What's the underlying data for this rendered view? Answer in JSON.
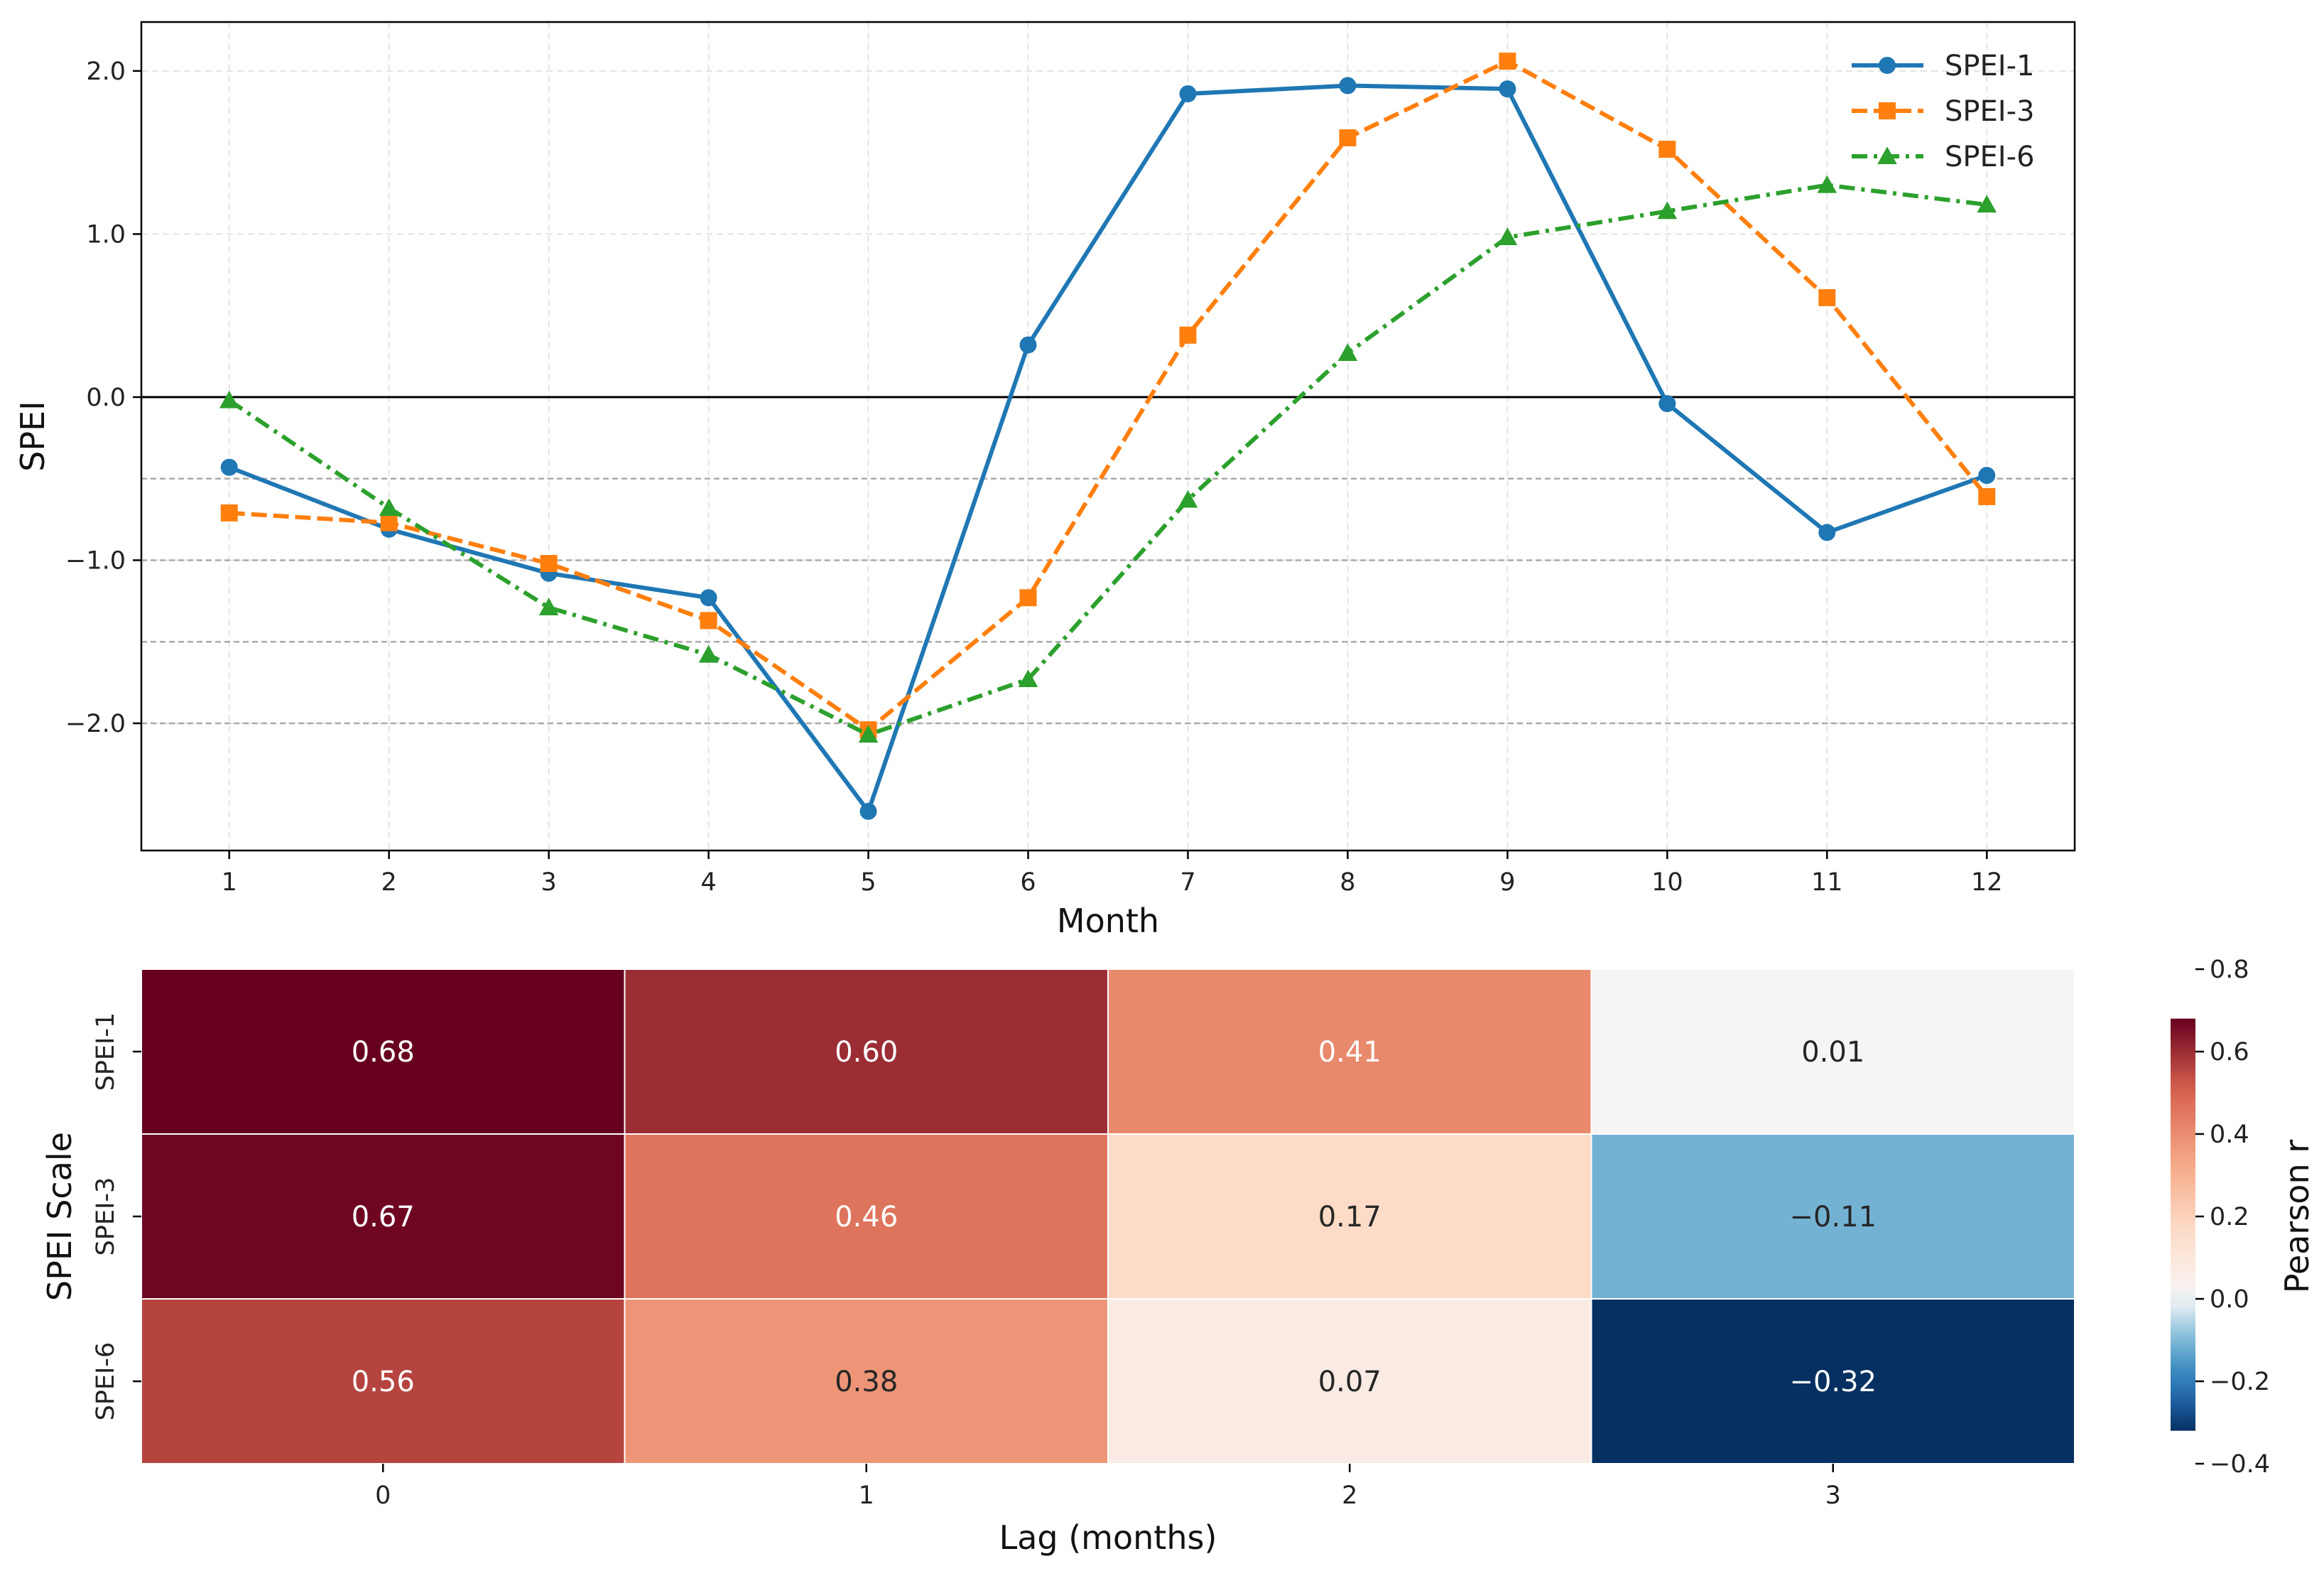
{
  "chart_data": [
    {
      "type": "line",
      "xlabel": "Month",
      "ylabel": "SPEI",
      "x": [
        1,
        2,
        3,
        4,
        5,
        6,
        7,
        8,
        9,
        10,
        11,
        12
      ],
      "xlim": [
        0.45,
        12.55
      ],
      "ylim": [
        -2.78,
        2.3
      ],
      "yticks": [
        2.0,
        1.0,
        0.0,
        -1.0,
        -2.0
      ],
      "ytick_labels": [
        "2.0",
        "1.0",
        "0.0",
        "−1.0",
        "−2.0"
      ],
      "reference_lines": [
        -0.5,
        -1.0,
        -1.5,
        -2.0
      ],
      "zero_line": 0.0,
      "grid": true,
      "legend_position": "top-right",
      "series": [
        {
          "name": "SPEI-1",
          "color": "#1f77b4",
          "marker": "circle",
          "linestyle": "solid",
          "values": [
            -0.43,
            -0.81,
            -1.08,
            -1.23,
            -2.54,
            0.32,
            1.86,
            1.91,
            1.89,
            -0.04,
            -0.83,
            -0.48
          ]
        },
        {
          "name": "SPEI-3",
          "color": "#ff7f0e",
          "marker": "square",
          "linestyle": "dashed",
          "values": [
            -0.71,
            -0.77,
            -1.02,
            -1.37,
            -2.04,
            -1.23,
            0.38,
            1.59,
            2.06,
            1.52,
            0.61,
            -0.61
          ]
        },
        {
          "name": "SPEI-6",
          "color": "#2ca02c",
          "marker": "triangle",
          "linestyle": "dashdot",
          "values": [
            -0.02,
            -0.68,
            -1.29,
            -1.58,
            -2.07,
            -1.73,
            -0.63,
            0.27,
            0.98,
            1.14,
            1.3,
            1.18
          ]
        }
      ]
    },
    {
      "type": "heatmap",
      "xlabel": "Lag (months)",
      "ylabel": "SPEI Scale",
      "x_labels": [
        "0",
        "1",
        "2",
        "3"
      ],
      "y_labels": [
        "SPEI-1",
        "SPEI-3",
        "SPEI-6"
      ],
      "values": [
        [
          0.68,
          0.6,
          0.41,
          0.01
        ],
        [
          0.67,
          0.46,
          0.17,
          -0.11
        ],
        [
          0.56,
          0.38,
          0.07,
          -0.32
        ]
      ],
      "value_labels": [
        [
          "0.68",
          "0.60",
          "0.41",
          "0.01"
        ],
        [
          "0.67",
          "0.46",
          "0.17",
          "−0.11"
        ],
        [
          "0.56",
          "0.38",
          "0.07",
          "−0.32"
        ]
      ],
      "colorbar": {
        "label": "Pearson r",
        "range": [
          -0.4,
          0.8
        ],
        "data_range": [
          -0.32,
          0.68
        ],
        "ticks": [
          0.8,
          0.6,
          0.4,
          0.2,
          0.0,
          -0.2,
          -0.4
        ],
        "tick_labels": [
          "0.8",
          "0.6",
          "0.4",
          "0.2",
          "0.0",
          "−0.2",
          "−0.4"
        ],
        "colormap": "RdBu_r"
      }
    }
  ]
}
